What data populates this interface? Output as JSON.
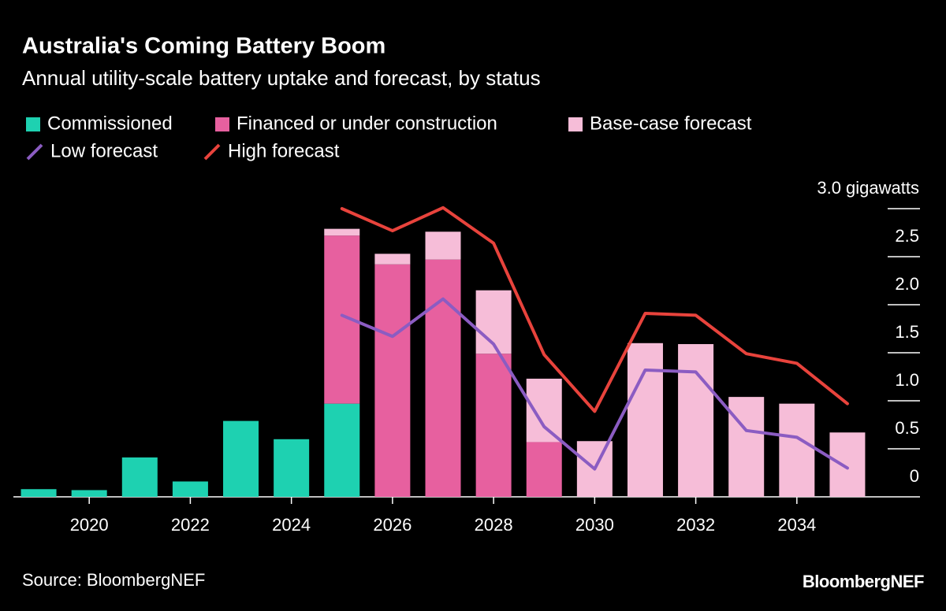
{
  "chart_data": {
    "type": "stacked-bar-line",
    "title": "Australia's Coming Battery Boom",
    "subtitle": "Annual utility-scale battery uptake and forecast, by status",
    "source": "Source: BloombergNEF",
    "brand": "BloombergNEF",
    "categories": [
      null,
      "2020",
      null,
      "2022",
      null,
      "2024",
      null,
      "2026",
      null,
      "2028",
      null,
      "2030",
      null,
      "2032",
      null,
      "2034",
      null
    ],
    "series": [
      {
        "name": "Commissioned",
        "kind": "bar",
        "color": "#1ed1b1",
        "values": [
          0.08,
          0.07,
          0.41,
          0.16,
          0.79,
          0.6,
          0.97,
          null,
          null,
          null,
          null,
          null,
          null,
          null,
          null,
          null,
          null
        ]
      },
      {
        "name": "Financed or under construction",
        "kind": "bar",
        "color": "#e7609f",
        "values": [
          null,
          null,
          null,
          null,
          null,
          null,
          1.75,
          2.42,
          2.47,
          1.49,
          0.57,
          null,
          null,
          null,
          null,
          null,
          null
        ]
      },
      {
        "name": "Base-case forecast",
        "kind": "bar",
        "color": "#f6bdd8",
        "values": [
          null,
          null,
          null,
          null,
          null,
          null,
          0.07,
          0.11,
          0.29,
          0.66,
          0.66,
          0.58,
          1.6,
          1.59,
          1.04,
          0.97,
          0.67
        ]
      },
      {
        "name": "Low forecast",
        "kind": "line",
        "color": "#8b5cc2",
        "values": [
          null,
          null,
          null,
          null,
          null,
          null,
          1.89,
          1.67,
          2.06,
          1.59,
          0.73,
          0.29,
          1.32,
          1.3,
          0.69,
          0.62,
          0.3
        ]
      },
      {
        "name": "High forecast",
        "kind": "line",
        "color": "#e8433c",
        "values": [
          null,
          null,
          null,
          null,
          null,
          null,
          3.0,
          2.77,
          3.01,
          2.64,
          1.48,
          0.89,
          1.91,
          1.89,
          1.49,
          1.39,
          0.97
        ]
      }
    ],
    "ylim": [
      0,
      3
    ],
    "yticks": [
      0,
      0.5,
      {
        "value": 1,
        "label": "1.0"
      },
      1.5,
      {
        "value": 2,
        "label": "2.0"
      },
      2.5,
      {
        "value": 3,
        "label": "3.0 gigawatts"
      }
    ]
  }
}
